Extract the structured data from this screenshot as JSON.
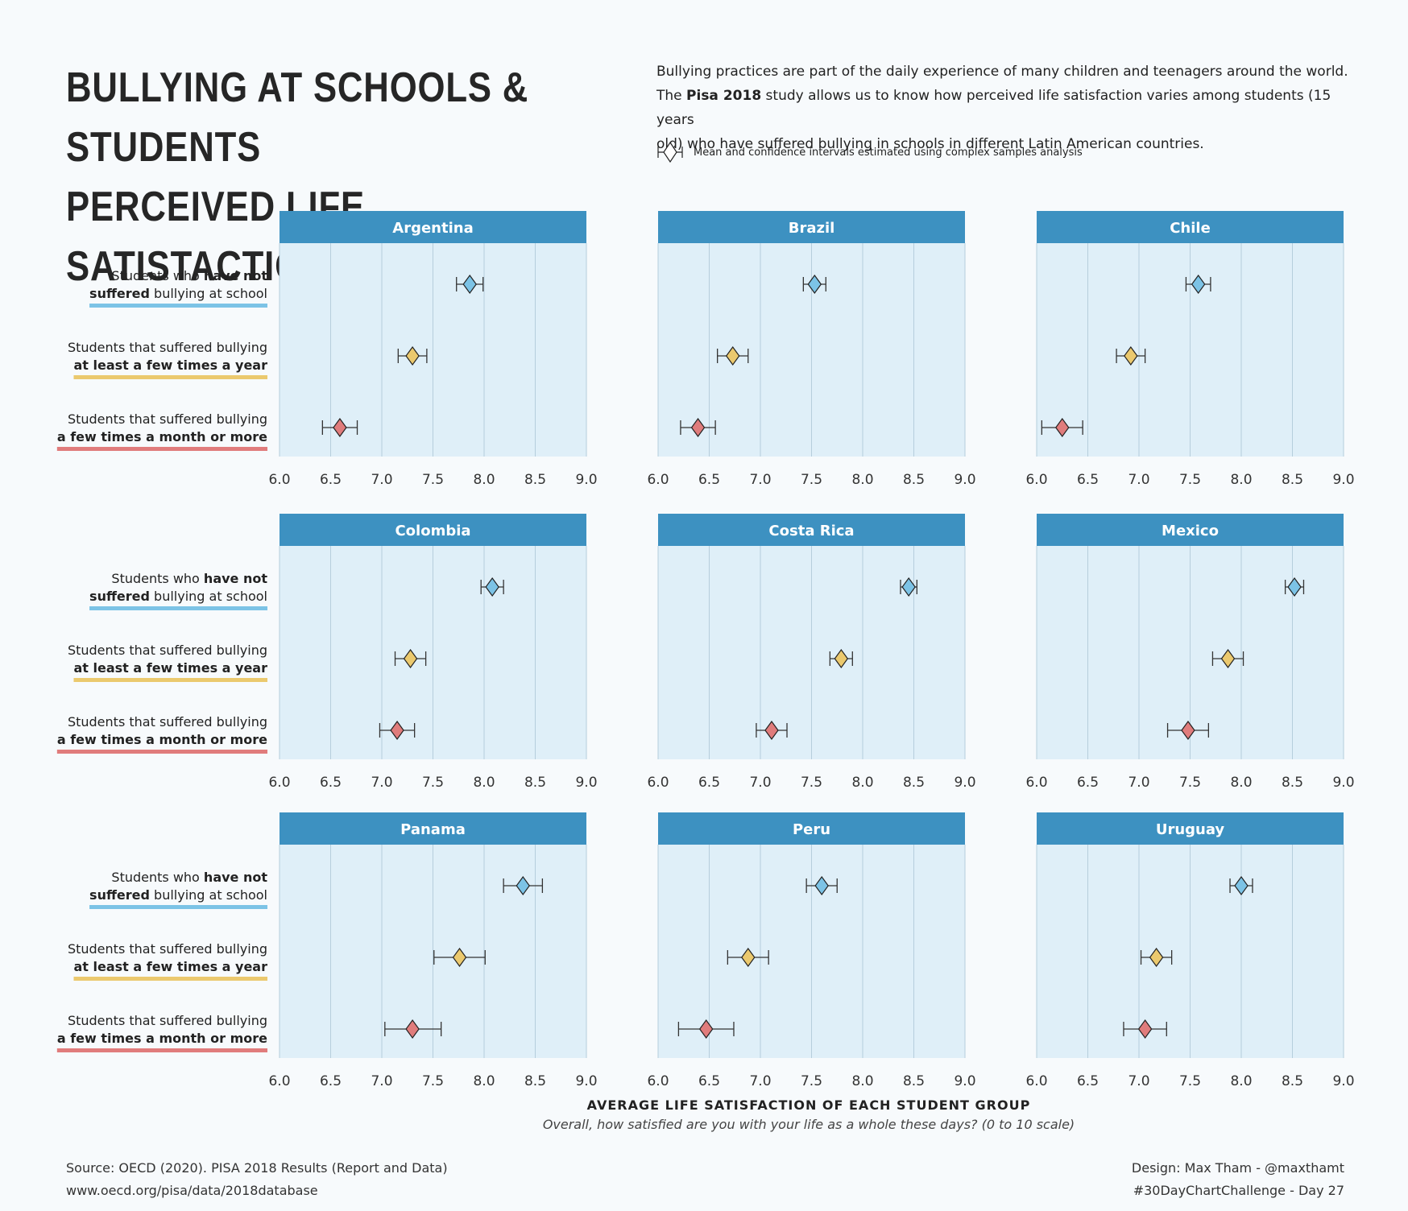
{
  "title": {
    "line1": "BULLYING AT SCHOOLS & STUDENTS",
    "line2": "PERCEIVED LIFE SATISTACTION"
  },
  "intro": {
    "line1": "Bullying practices are part of the daily experience of many children and teenagers around the world.",
    "line2_pre": "The ",
    "line2_bold": "Pisa 2018",
    "line2_post": " study allows us to know how perceived life satisfaction varies among students (15 years",
    "line3": "old) who have suffered bullying in schools in different Latin American countries."
  },
  "ci_legend": "Mean and confidence intervals estimated using complex samples analysis",
  "chart_data": {
    "type": "scatter",
    "mark": "diamond point with confidence-interval error bars",
    "xlim": [
      6.0,
      9.0
    ],
    "xticks": [
      "6.0",
      "6.5",
      "7.0",
      "7.5",
      "8.0",
      "8.5",
      "9.0"
    ],
    "xlabel": "AVERAGE LIFE SATISFACTION OF EACH STUDENT GROUP",
    "xlabel_sub": "Overall, how satisfied are you with your life as a whole these days? (0 to 10 scale)",
    "grid": true,
    "groups": [
      {
        "key": "never",
        "label_pre": "Students who ",
        "label_bold": "have not",
        "label_line2_bold": "suffered",
        "label_line2_post": " bullying at school",
        "color": "#7cc3e6"
      },
      {
        "key": "yearly",
        "label_line1": "Students that suffered bullying",
        "label_line2_bold": "at least a few times a year",
        "color": "#ebc96e"
      },
      {
        "key": "monthly",
        "label_line1": "Students that suffered bullying",
        "label_line2_bold": "a few times a month or more",
        "color": "#e07c7c"
      }
    ],
    "panels": [
      {
        "country": "Argentina",
        "points": [
          {
            "mean": 7.86,
            "lo": 7.73,
            "hi": 7.99
          },
          {
            "mean": 7.3,
            "lo": 7.16,
            "hi": 7.44
          },
          {
            "mean": 6.59,
            "lo": 6.42,
            "hi": 6.76
          }
        ]
      },
      {
        "country": "Brazil",
        "points": [
          {
            "mean": 7.53,
            "lo": 7.42,
            "hi": 7.64
          },
          {
            "mean": 6.73,
            "lo": 6.58,
            "hi": 6.88
          },
          {
            "mean": 6.39,
            "lo": 6.22,
            "hi": 6.56
          }
        ]
      },
      {
        "country": "Chile",
        "points": [
          {
            "mean": 7.58,
            "lo": 7.46,
            "hi": 7.7
          },
          {
            "mean": 6.92,
            "lo": 6.78,
            "hi": 7.06
          },
          {
            "mean": 6.25,
            "lo": 6.05,
            "hi": 6.45
          }
        ]
      },
      {
        "country": "Colombia",
        "points": [
          {
            "mean": 8.08,
            "lo": 7.97,
            "hi": 8.19
          },
          {
            "mean": 7.28,
            "lo": 7.13,
            "hi": 7.43
          },
          {
            "mean": 7.15,
            "lo": 6.98,
            "hi": 7.32
          }
        ]
      },
      {
        "country": "Costa Rica",
        "points": [
          {
            "mean": 8.45,
            "lo": 8.37,
            "hi": 8.53
          },
          {
            "mean": 7.79,
            "lo": 7.68,
            "hi": 7.9
          },
          {
            "mean": 7.11,
            "lo": 6.96,
            "hi": 7.26
          }
        ]
      },
      {
        "country": "Mexico",
        "points": [
          {
            "mean": 8.52,
            "lo": 8.43,
            "hi": 8.61
          },
          {
            "mean": 7.87,
            "lo": 7.72,
            "hi": 8.02
          },
          {
            "mean": 7.48,
            "lo": 7.28,
            "hi": 7.68
          }
        ]
      },
      {
        "country": "Panama",
        "points": [
          {
            "mean": 8.38,
            "lo": 8.19,
            "hi": 8.57
          },
          {
            "mean": 7.76,
            "lo": 7.51,
            "hi": 8.01
          },
          {
            "mean": 7.3,
            "lo": 7.03,
            "hi": 7.58
          }
        ]
      },
      {
        "country": "Peru",
        "points": [
          {
            "mean": 7.6,
            "lo": 7.45,
            "hi": 7.75
          },
          {
            "mean": 6.88,
            "lo": 6.68,
            "hi": 7.08
          },
          {
            "mean": 6.47,
            "lo": 6.2,
            "hi": 6.74
          }
        ]
      },
      {
        "country": "Uruguay",
        "points": [
          {
            "mean": 8.0,
            "lo": 7.89,
            "hi": 8.11
          },
          {
            "mean": 7.17,
            "lo": 7.02,
            "hi": 7.32
          },
          {
            "mean": 7.06,
            "lo": 6.85,
            "hi": 7.27
          }
        ]
      }
    ]
  },
  "footer": {
    "source": "Source: OECD (2020). PISA 2018 Results (Report and Data)",
    "url": "www.oecd.org/pisa/data/2018database",
    "design": "Design: Max Tham - @maxthamt",
    "challenge": "#30DayChartChallenge - Day 27"
  },
  "colors": {
    "panel_bg": "#dfeff8",
    "header_bg": "#3d91c1",
    "grid": "#b6cedc",
    "never": "#7cc3e6",
    "yearly": "#ebc96e",
    "monthly": "#e07c7c"
  }
}
